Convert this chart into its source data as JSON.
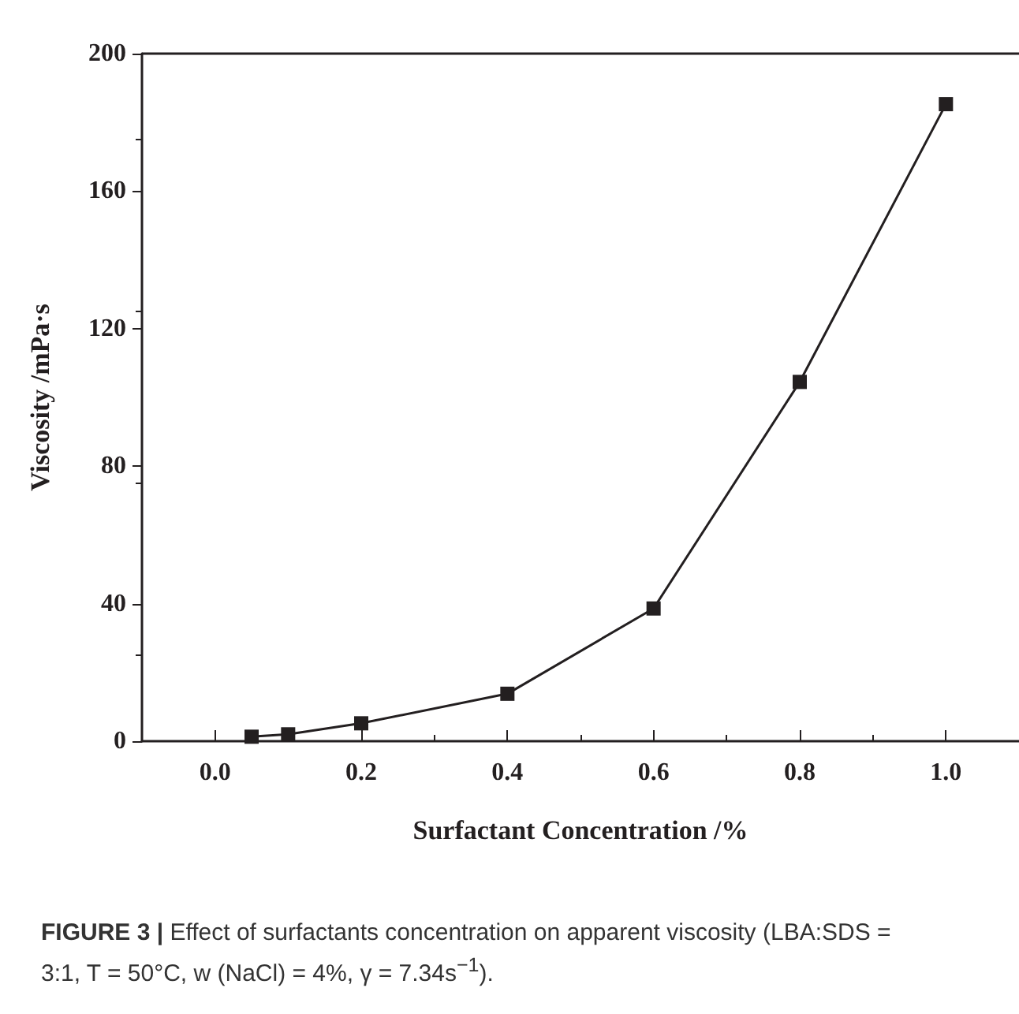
{
  "chart_data": {
    "type": "line",
    "xlabel": "Surfactant Concentration /%",
    "ylabel": "Viscosity /mPa·s",
    "x": [
      0.05,
      0.1,
      0.2,
      0.4,
      0.6,
      0.8,
      1.0
    ],
    "series": [
      {
        "color": "#231f20",
        "values": [
          1.3,
          2.0,
          5.2,
          13.8,
          38.6,
          104.5,
          185.3
        ]
      }
    ],
    "xlim": [
      -0.1,
      1.1
    ],
    "xticks": [
      {
        "value": 0.0,
        "label": "0.0"
      },
      0.2,
      0.4,
      0.6,
      0.8,
      {
        "value": 1.0,
        "label": "1.0"
      }
    ],
    "ylim": [
      0,
      200
    ],
    "yticks": [
      0,
      40,
      80,
      120,
      160,
      200
    ],
    "marker": "square",
    "line_style": "solid",
    "grid": false,
    "annotations": [
      "FIGURE 3 | Effect of surfactants concentration on apparent viscosity (LBA:SDS = 3:1, T = 50°C, w (NaCl) = 4%, γ = 7.34s$^{−1}$)."
    ]
  }
}
